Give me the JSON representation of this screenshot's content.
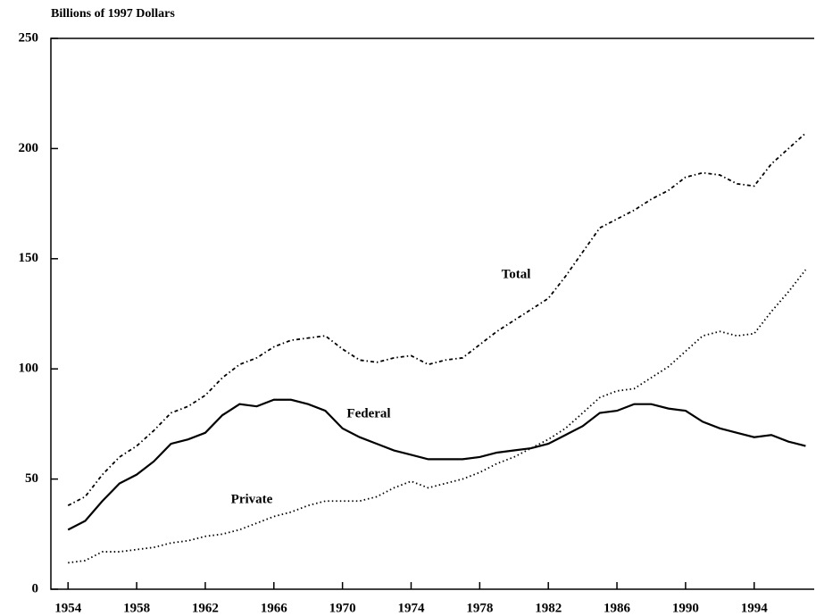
{
  "chart_data": {
    "type": "line",
    "y_axis_label": "Billions of 1997 Dollars",
    "x": [
      1954,
      1955,
      1956,
      1957,
      1958,
      1959,
      1960,
      1961,
      1962,
      1963,
      1964,
      1965,
      1966,
      1967,
      1968,
      1969,
      1970,
      1971,
      1972,
      1973,
      1974,
      1975,
      1976,
      1977,
      1978,
      1979,
      1980,
      1981,
      1982,
      1983,
      1984,
      1985,
      1986,
      1987,
      1988,
      1989,
      1990,
      1991,
      1992,
      1993,
      1994,
      1995,
      1996,
      1997
    ],
    "series": [
      {
        "name": "Total",
        "color": "#000000",
        "style": "dashdot",
        "values": [
          38,
          42,
          52,
          60,
          65,
          72,
          80,
          83,
          88,
          96,
          102,
          105,
          110,
          113,
          114,
          115,
          109,
          104,
          103,
          105,
          106,
          102,
          104,
          105,
          111,
          117,
          122,
          127,
          132,
          142,
          153,
          164,
          168,
          172,
          177,
          181,
          187,
          189,
          188,
          184,
          183,
          193,
          200,
          207
        ]
      },
      {
        "name": "Federal",
        "color": "#000000",
        "style": "solid",
        "values": [
          27,
          31,
          40,
          48,
          52,
          58,
          66,
          68,
          71,
          79,
          84,
          83,
          86,
          86,
          84,
          81,
          73,
          69,
          66,
          63,
          61,
          59,
          59,
          59,
          60,
          62,
          63,
          64,
          66,
          70,
          74,
          80,
          81,
          84,
          84,
          82,
          81,
          76,
          73,
          71,
          69,
          70,
          67,
          65
        ]
      },
      {
        "name": "Private",
        "color": "#000000",
        "style": "dotted",
        "values": [
          12,
          13,
          17,
          17,
          18,
          19,
          21,
          22,
          24,
          25,
          27,
          30,
          33,
          35,
          38,
          40,
          40,
          40,
          42,
          46,
          49,
          46,
          48,
          50,
          53,
          57,
          60,
          64,
          68,
          73,
          80,
          87,
          90,
          91,
          96,
          101,
          108,
          115,
          117,
          115,
          116,
          126,
          135,
          145
        ]
      }
    ],
    "xlim": [
      1953,
      1997.5
    ],
    "xticks": [
      1954,
      1958,
      1962,
      1966,
      1970,
      1974,
      1978,
      1982,
      1986,
      1990,
      1994
    ],
    "ylim": [
      0,
      250
    ],
    "yticks": [
      0,
      50,
      100,
      150,
      200,
      250
    ],
    "grid": false
  }
}
